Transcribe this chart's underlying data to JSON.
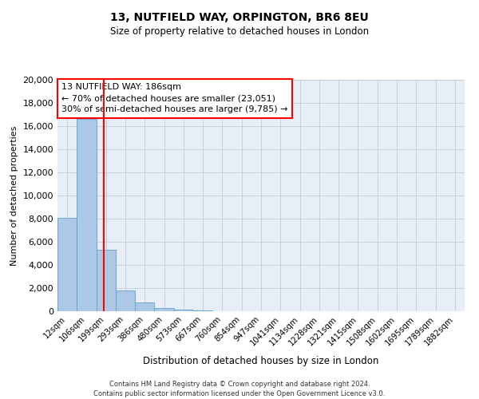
{
  "title_line1": "13, NUTFIELD WAY, ORPINGTON, BR6 8EU",
  "title_line2": "Size of property relative to detached houses in London",
  "xlabel": "Distribution of detached houses by size in London",
  "ylabel": "Number of detached properties",
  "bar_labels": [
    "12sqm",
    "106sqm",
    "199sqm",
    "293sqm",
    "386sqm",
    "480sqm",
    "573sqm",
    "667sqm",
    "760sqm",
    "854sqm",
    "947sqm",
    "1041sqm",
    "1134sqm",
    "1228sqm",
    "1321sqm",
    "1415sqm",
    "1508sqm",
    "1602sqm",
    "1695sqm",
    "1789sqm",
    "1882sqm"
  ],
  "bar_values": [
    8100,
    16600,
    5300,
    1800,
    750,
    300,
    150,
    100,
    0,
    0,
    0,
    0,
    0,
    0,
    0,
    0,
    0,
    0,
    0,
    0,
    0
  ],
  "bar_color": "#adc8e6",
  "bar_edge_color": "#5a9fd4",
  "vline_x": 1.87,
  "vline_color": "red",
  "annotation_line1": "13 NUTFIELD WAY: 186sqm",
  "annotation_line2": "← 70% of detached houses are smaller (23,051)",
  "annotation_line3": "30% of semi-detached houses are larger (9,785) →",
  "ylim": [
    0,
    20000
  ],
  "yticks": [
    0,
    2000,
    4000,
    6000,
    8000,
    10000,
    12000,
    14000,
    16000,
    18000,
    20000
  ],
  "grid_color": "#c8d0dc",
  "bg_color": "#e8eef8",
  "footer_line1": "Contains HM Land Registry data © Crown copyright and database right 2024.",
  "footer_line2": "Contains public sector information licensed under the Open Government Licence v3.0."
}
